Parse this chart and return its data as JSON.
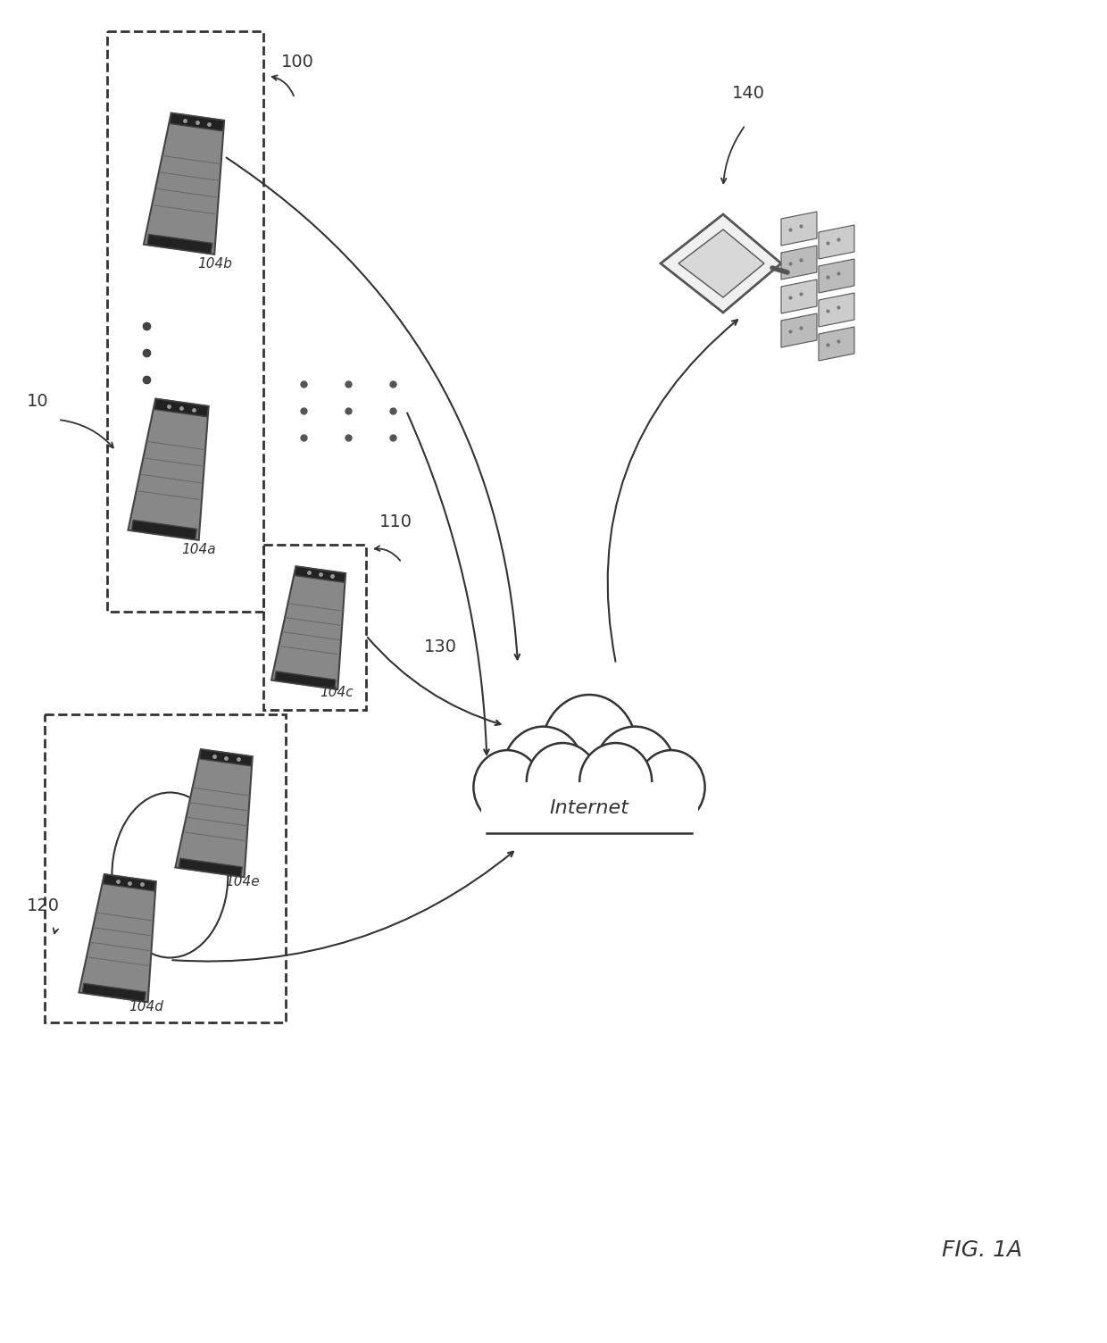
{
  "fig_label": "FIG. 1A",
  "background_color": "#ffffff",
  "label_10": "10",
  "label_100": "100",
  "label_110": "110",
  "label_120": "120",
  "label_130": "130",
  "label_140": "140",
  "label_104a": "104a",
  "label_104b": "104b",
  "label_104c": "104c",
  "label_104d": "104d",
  "label_104e": "104e",
  "internet_label": "Internet",
  "batt_color": "#888888",
  "batt_dark": "#444444",
  "batt_connector": "#222222",
  "line_color": "#333333",
  "text_color": "#333333"
}
